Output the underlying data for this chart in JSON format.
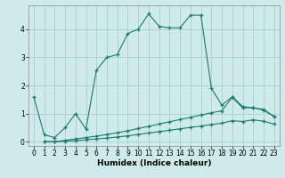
{
  "title": "",
  "xlabel": "Humidex (Indice chaleur)",
  "ylabel": "",
  "background_color": "#ceeaea",
  "grid_color": "#aacfcf",
  "line_color": "#1a7a6e",
  "xlim": [
    -0.5,
    23.5
  ],
  "ylim": [
    -0.15,
    4.85
  ],
  "yticks": [
    0,
    1,
    2,
    3,
    4
  ],
  "xticks": [
    0,
    1,
    2,
    3,
    4,
    5,
    6,
    7,
    8,
    9,
    10,
    11,
    12,
    13,
    14,
    15,
    16,
    17,
    18,
    19,
    20,
    21,
    22,
    23
  ],
  "series1_x": [
    0,
    1,
    2,
    3,
    4,
    5,
    6,
    7,
    8,
    9,
    10,
    11,
    12,
    13,
    14,
    15,
    16,
    17,
    18,
    19,
    20,
    21,
    22,
    23
  ],
  "series1_y": [
    1.6,
    0.25,
    0.15,
    0.5,
    1.0,
    0.45,
    2.55,
    3.0,
    3.1,
    3.85,
    4.0,
    4.55,
    4.1,
    4.05,
    4.05,
    4.5,
    4.5,
    1.9,
    1.3,
    1.6,
    1.25,
    1.2,
    1.15,
    0.9
  ],
  "series2_x": [
    1,
    2,
    3,
    4,
    5,
    6,
    7,
    8,
    9,
    10,
    11,
    12,
    13,
    14,
    15,
    16,
    17,
    18,
    19,
    20,
    21,
    22,
    23
  ],
  "series2_y": [
    0.0,
    0.0,
    0.05,
    0.1,
    0.15,
    0.2,
    0.26,
    0.32,
    0.39,
    0.47,
    0.55,
    0.63,
    0.71,
    0.79,
    0.87,
    0.95,
    1.03,
    1.1,
    1.58,
    1.2,
    1.22,
    1.12,
    0.9
  ],
  "series3_x": [
    1,
    2,
    3,
    4,
    5,
    6,
    7,
    8,
    9,
    10,
    11,
    12,
    13,
    14,
    15,
    16,
    17,
    18,
    19,
    20,
    21,
    22,
    23
  ],
  "series3_y": [
    0.0,
    0.0,
    0.02,
    0.04,
    0.07,
    0.1,
    0.13,
    0.17,
    0.21,
    0.26,
    0.31,
    0.36,
    0.41,
    0.46,
    0.51,
    0.56,
    0.61,
    0.66,
    0.75,
    0.72,
    0.78,
    0.73,
    0.63
  ]
}
